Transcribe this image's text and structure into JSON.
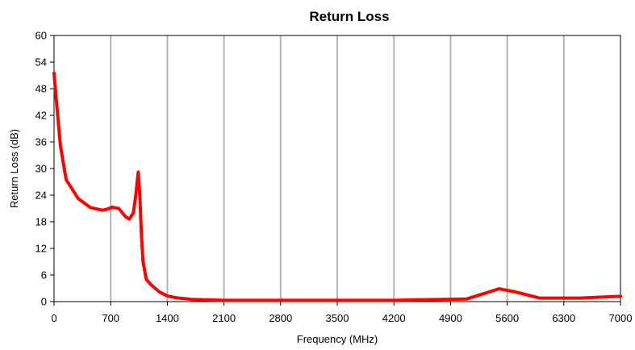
{
  "chart_data": {
    "type": "line",
    "title": "Return Loss",
    "xlabel": "Frequency (MHz)",
    "ylabel": "Return Loss (dB)",
    "xlim": [
      0,
      7000
    ],
    "ylim": [
      0,
      60
    ],
    "x_ticks": [
      0,
      700,
      1400,
      2100,
      2800,
      3500,
      4200,
      4900,
      5600,
      6300,
      7000
    ],
    "y_ticks": [
      0,
      6,
      12,
      18,
      24,
      30,
      36,
      42,
      48,
      54,
      60
    ],
    "x_tick_labels": [
      "0",
      "700",
      "1400",
      "2100",
      "2800",
      "3500",
      "4200",
      "4900",
      "5600",
      "6300",
      "7000"
    ],
    "y_tick_labels": [
      "0",
      "6",
      "12",
      "18",
      "24",
      "30",
      "36",
      "42",
      "48",
      "54",
      "60"
    ],
    "grid": {
      "x": true,
      "y": false
    },
    "colors": {
      "line": "#ff0000",
      "grid": "#b3b3b3",
      "axis": "#000000"
    },
    "series": [
      {
        "x": [
          0,
          40,
          80,
          150,
          300,
          450,
          600,
          650,
          720,
          800,
          880,
          930,
          980,
          1010,
          1040,
          1060,
          1080,
          1100,
          1140,
          1200,
          1300,
          1400,
          1500,
          1700,
          2100,
          2800,
          3500,
          3900,
          4200,
          4500,
          5100,
          5500,
          5700,
          6000,
          6500,
          7000
        ],
        "y": [
          51.5,
          43,
          35,
          27.5,
          23.2,
          21.2,
          20.6,
          20.8,
          21.3,
          21,
          19.2,
          18.6,
          20,
          24,
          29.2,
          24,
          15,
          9,
          5,
          3.8,
          2.2,
          1.3,
          0.9,
          0.5,
          0.3,
          0.3,
          0.3,
          0.3,
          0.3,
          0.4,
          0.6,
          2.9,
          2.2,
          0.8,
          0.8,
          1.2
        ]
      }
    ]
  }
}
